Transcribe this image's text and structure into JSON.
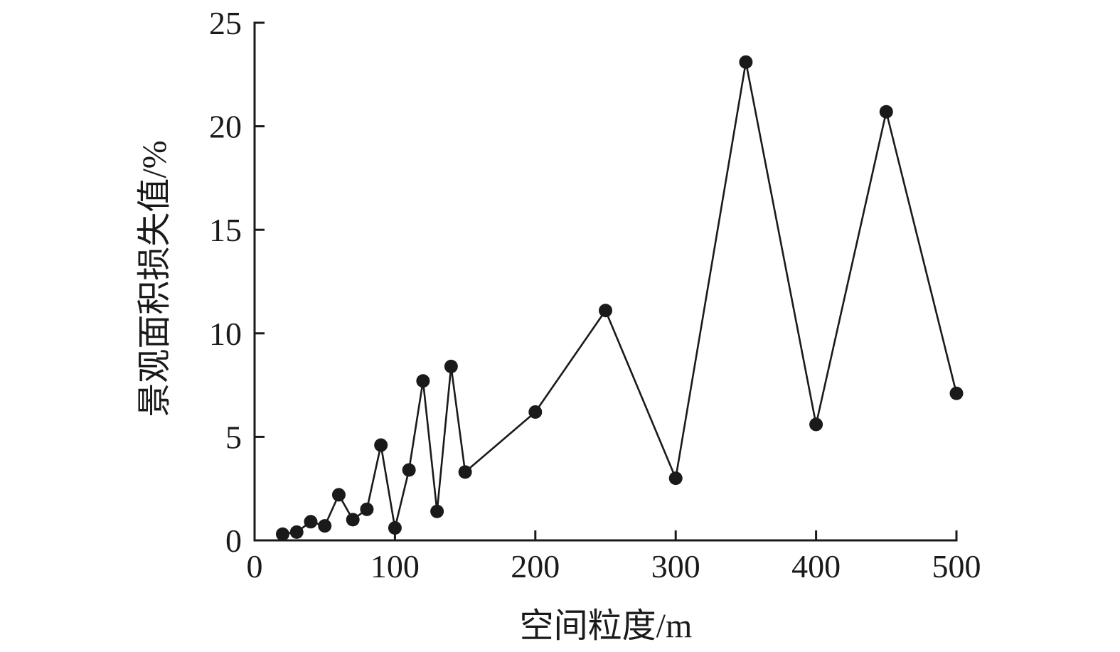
{
  "chart_data": {
    "type": "line",
    "title": "",
    "xlabel": "空间粒度/m",
    "ylabel": "景观面积损失值/%",
    "x": [
      20,
      30,
      40,
      50,
      60,
      70,
      80,
      90,
      100,
      110,
      120,
      130,
      140,
      150,
      200,
      250,
      300,
      350,
      400,
      450,
      500
    ],
    "y": [
      0.3,
      0.4,
      0.9,
      0.7,
      2.2,
      1.0,
      1.5,
      4.6,
      0.6,
      3.4,
      7.7,
      1.4,
      8.4,
      3.3,
      6.2,
      11.1,
      3.0,
      23.1,
      5.6,
      20.7,
      7.1
    ],
    "xlim": [
      0,
      500
    ],
    "ylim": [
      0,
      25
    ],
    "xticks": [
      0,
      100,
      200,
      300,
      400,
      500
    ],
    "yticks": [
      0,
      5,
      10,
      15,
      20,
      25
    ],
    "grid": false,
    "legend": null,
    "marker": "circle",
    "line_color": "#1a1a1a",
    "marker_color": "#1a1a1a",
    "axis_color": "#1a1a1a",
    "background_color": "#ffffff"
  }
}
